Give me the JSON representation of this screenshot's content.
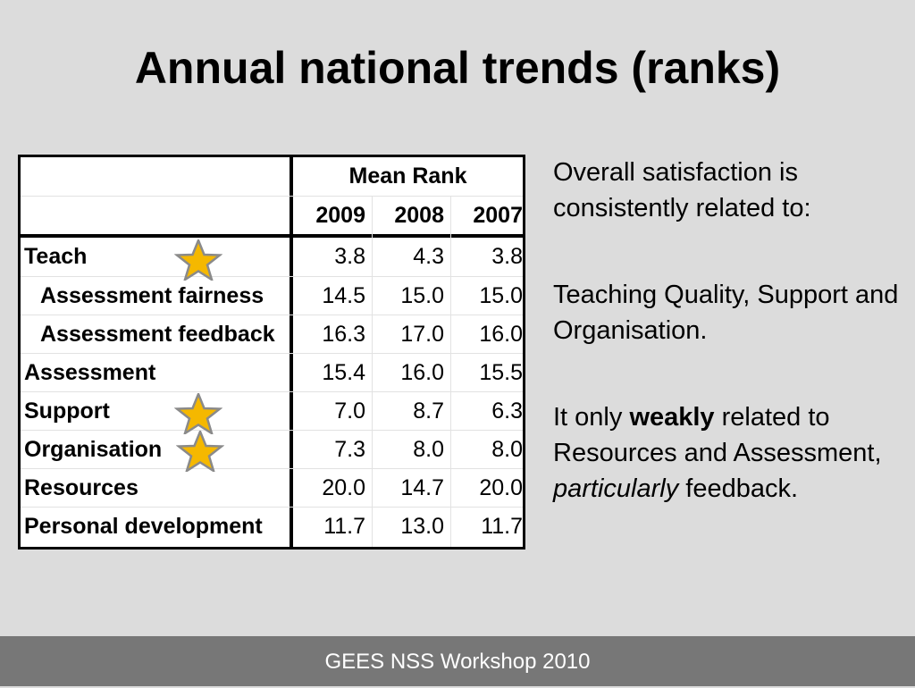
{
  "slide": {
    "title": "Annual national trends (ranks)",
    "footer": "GEES NSS Workshop 2010"
  },
  "table": {
    "group_header": "Mean Rank",
    "years": [
      "2009",
      "2008",
      "2007"
    ],
    "rows": [
      {
        "label": "Teach",
        "values": [
          "3.8",
          "4.3",
          "3.8"
        ],
        "starred": true
      },
      {
        "label": "Assessment fairness",
        "values": [
          "14.5",
          "15.0",
          "15.0"
        ]
      },
      {
        "label": "Assessment feedback",
        "values": [
          "16.3",
          "17.0",
          "16.0"
        ]
      },
      {
        "label": "Assessment",
        "values": [
          "15.4",
          "16.0",
          "15.5"
        ]
      },
      {
        "label": "Support",
        "values": [
          "7.0",
          "8.7",
          "6.3"
        ],
        "starred": true
      },
      {
        "label": "Organisation",
        "values": [
          "7.3",
          "8.0",
          "8.0"
        ],
        "starred": true
      },
      {
        "label": "Resources",
        "values": [
          "20.0",
          "14.7",
          "20.0"
        ]
      },
      {
        "label": "Personal development",
        "values": [
          "11.7",
          "13.0",
          "11.7"
        ]
      }
    ],
    "star_color": "#f5b800",
    "star_icon": "star-icon"
  },
  "text": {
    "p1": "Overall satisfaction is consistently related to:",
    "p2": "Teaching Quality, Support and Organisation.",
    "p3_pre": "It only ",
    "p3_bold": "weakly",
    "p3_mid": " related to Resources and Assessment, ",
    "p3_italic": "particularly",
    "p3_post": " feedback."
  }
}
